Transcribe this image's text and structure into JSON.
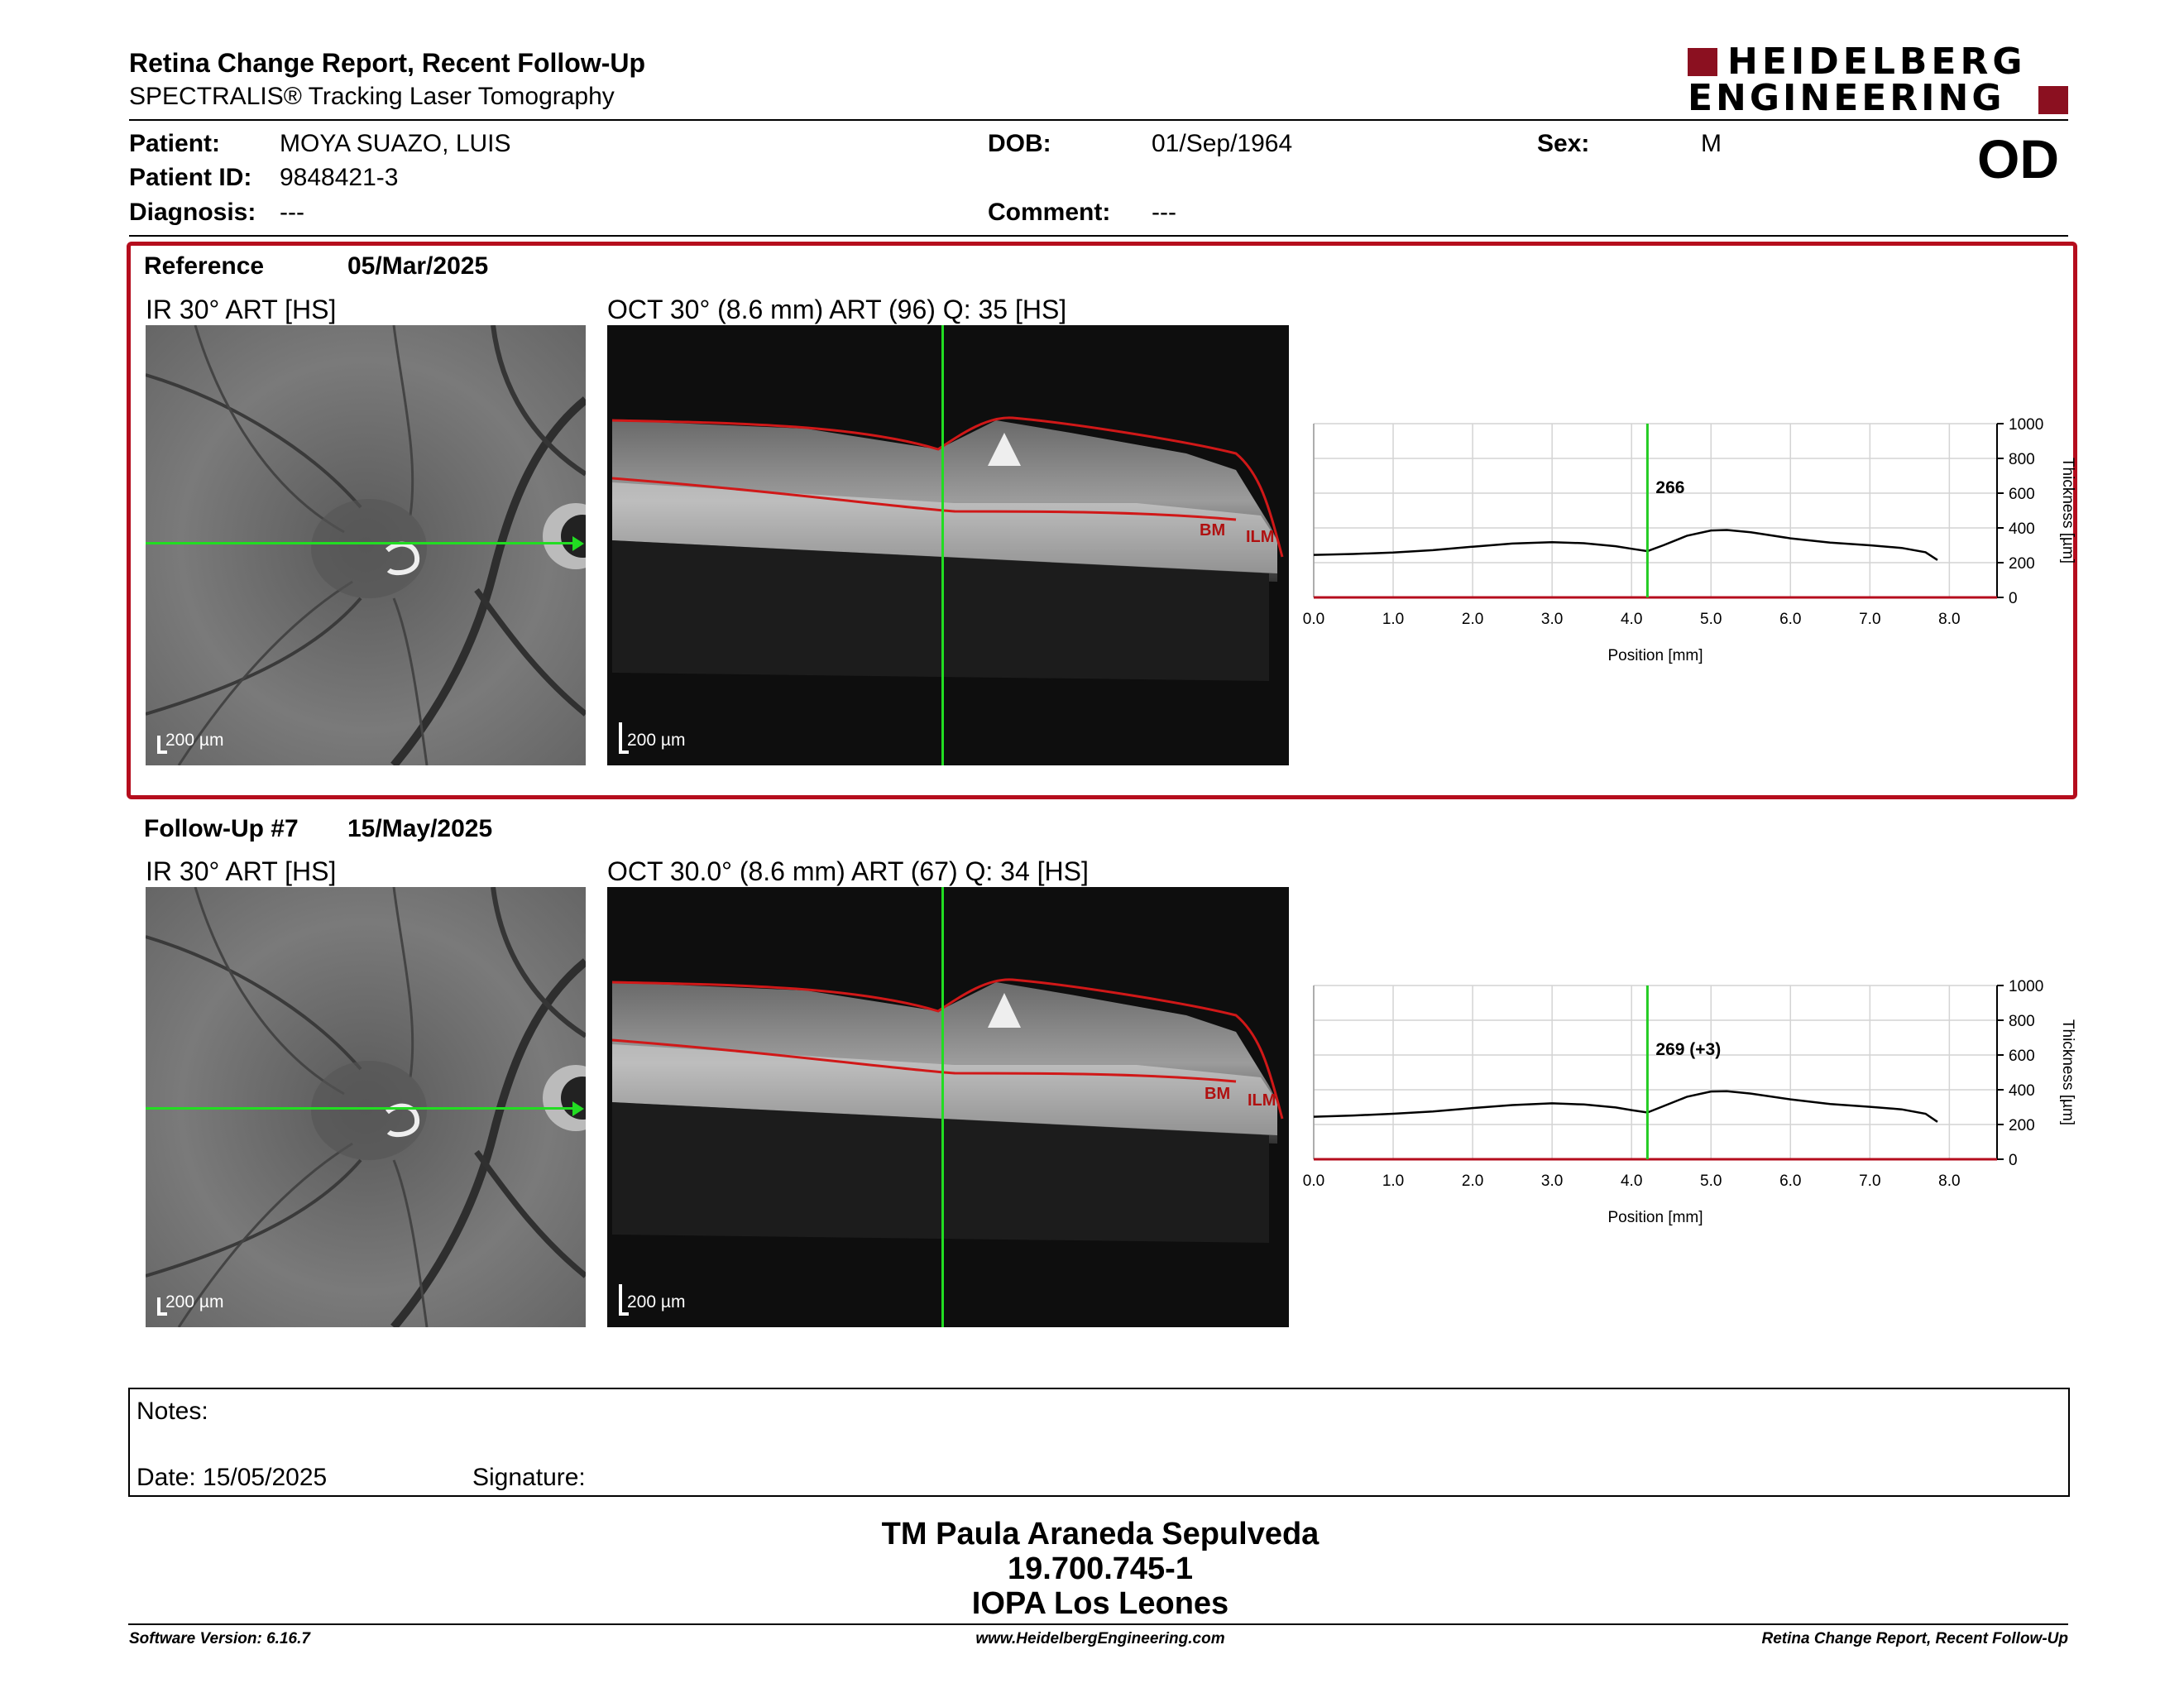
{
  "header": {
    "title": "Retina Change Report, Recent Follow-Up",
    "subtitle": "SPECTRALIS® Tracking Laser Tomography",
    "logo_line1": "HEIDELBERG",
    "logo_line2": "ENGINEERING",
    "eye": "OD"
  },
  "patient": {
    "patient_label": "Patient:",
    "patient_value": "MOYA SUAZO, LUIS",
    "id_label": "Patient ID:",
    "id_value": "9848421-3",
    "diagnosis_label": "Diagnosis:",
    "diagnosis_value": "---",
    "dob_label": "DOB:",
    "dob_value": "01/Sep/1964",
    "comment_label": "Comment:",
    "comment_value": "---",
    "sex_label": "Sex:",
    "sex_value": "M"
  },
  "reference": {
    "label": "Reference",
    "date": "05/Mar/2025",
    "ir_caption": "IR 30° ART [HS]",
    "oct_caption": "OCT 30° (8.6 mm) ART (96) Q: 35 [HS]",
    "scale_ir": "200 µm",
    "scale_oct": "200 µm",
    "bm_label": "BM",
    "ilm_label": "ILM"
  },
  "followup": {
    "label": "Follow-Up #7",
    "date": "15/May/2025",
    "ir_caption": "IR 30° ART [HS]",
    "oct_caption": "OCT 30.0° (8.6 mm) ART (67) Q: 34 [HS]",
    "scale_ir": "200 µm",
    "scale_oct": "200 µm",
    "bm_label": "BM",
    "ilm_label": "ILM"
  },
  "chart_data": [
    {
      "type": "line",
      "xlabel": "Position [mm]",
      "ylabel": "Thickness [µm]",
      "xlim": [
        0,
        8.6
      ],
      "ylim": [
        0,
        1000
      ],
      "x_ticks": [
        "0.0",
        "1.0",
        "2.0",
        "3.0",
        "4.0",
        "5.0",
        "6.0",
        "7.0",
        "8.0"
      ],
      "y_ticks": [
        "0",
        "200",
        "400",
        "600",
        "800",
        "1000"
      ],
      "grid": true,
      "marker_x": 4.2,
      "marker_label": "266",
      "marker_color": "#22cc22",
      "series": [
        {
          "color": "#000000",
          "x": [
            0.0,
            0.5,
            1.0,
            1.5,
            2.0,
            2.5,
            3.0,
            3.4,
            3.8,
            4.0,
            4.2,
            4.4,
            4.7,
            5.0,
            5.2,
            5.5,
            6.0,
            6.5,
            7.0,
            7.4,
            7.7,
            7.85
          ],
          "y": [
            245,
            250,
            258,
            272,
            292,
            310,
            318,
            312,
            295,
            280,
            266,
            300,
            355,
            385,
            388,
            375,
            340,
            315,
            300,
            285,
            260,
            215
          ]
        }
      ]
    },
    {
      "type": "line",
      "xlabel": "Position [mm]",
      "ylabel": "Thickness [µm]",
      "xlim": [
        0,
        8.6
      ],
      "ylim": [
        0,
        1000
      ],
      "x_ticks": [
        "0.0",
        "1.0",
        "2.0",
        "3.0",
        "4.0",
        "5.0",
        "6.0",
        "7.0",
        "8.0"
      ],
      "y_ticks": [
        "0",
        "200",
        "400",
        "600",
        "800",
        "1000"
      ],
      "grid": true,
      "marker_x": 4.2,
      "marker_label": "269 (+3)",
      "marker_color": "#22cc22",
      "series": [
        {
          "color": "#000000",
          "x": [
            0.0,
            0.5,
            1.0,
            1.5,
            2.0,
            2.5,
            3.0,
            3.4,
            3.8,
            4.0,
            4.2,
            4.4,
            4.7,
            5.0,
            5.2,
            5.5,
            6.0,
            6.5,
            7.0,
            7.4,
            7.7,
            7.85
          ],
          "y": [
            245,
            252,
            262,
            275,
            295,
            312,
            322,
            315,
            298,
            283,
            269,
            305,
            360,
            390,
            392,
            378,
            345,
            318,
            302,
            287,
            262,
            215
          ]
        }
      ]
    }
  ],
  "notes": {
    "notes_label": "Notes:",
    "date_label": "Date: 15/05/2025",
    "signature_label": "Signature:"
  },
  "signature": {
    "name": "TM Paula Araneda Sepulveda",
    "id": "19.700.745-1",
    "org": "IOPA Los Leones"
  },
  "footer": {
    "version": "Software Version: 6.16.7",
    "website": "www.HeidelbergEngineering.com",
    "report_name": "Retina Change Report, Recent Follow-Up"
  },
  "colors": {
    "accent_red": "#b50d1d",
    "scan_green": "#22dd22",
    "segmentation_red": "#d01818"
  }
}
